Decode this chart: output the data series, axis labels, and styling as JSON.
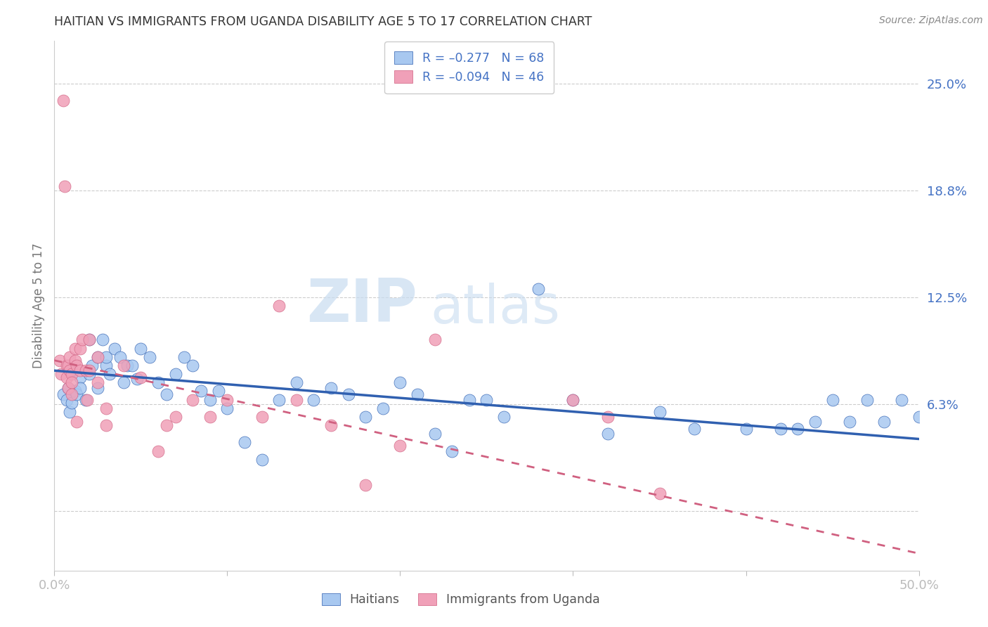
{
  "title": "HAITIAN VS IMMIGRANTS FROM UGANDA DISABILITY AGE 5 TO 17 CORRELATION CHART",
  "source": "Source: ZipAtlas.com",
  "ylabel": "Disability Age 5 to 17",
  "xlim": [
    0.0,
    0.5
  ],
  "ylim": [
    -0.035,
    0.275
  ],
  "yticks": [
    0.0,
    0.0625,
    0.125,
    0.1875,
    0.25
  ],
  "ytick_labels": [
    "",
    "6.3%",
    "12.5%",
    "18.8%",
    "25.0%"
  ],
  "color_blue": "#A8C8F0",
  "color_pink": "#F0A0B8",
  "color_line_blue": "#3060B0",
  "color_line_pink": "#D06080",
  "color_axis_label": "#4472C4",
  "legend_r1": "R = –0.277",
  "legend_n1": "N = 68",
  "legend_r2": "R = –0.094",
  "legend_n2": "N = 46",
  "watermark_zip": "ZIP",
  "watermark_atlas": "atlas",
  "blue_scatter_x": [
    0.005,
    0.007,
    0.008,
    0.009,
    0.01,
    0.01,
    0.012,
    0.013,
    0.015,
    0.015,
    0.018,
    0.02,
    0.02,
    0.022,
    0.025,
    0.025,
    0.028,
    0.03,
    0.03,
    0.032,
    0.035,
    0.038,
    0.04,
    0.042,
    0.045,
    0.048,
    0.05,
    0.055,
    0.06,
    0.065,
    0.07,
    0.075,
    0.08,
    0.085,
    0.09,
    0.095,
    0.1,
    0.11,
    0.12,
    0.13,
    0.14,
    0.15,
    0.16,
    0.17,
    0.18,
    0.19,
    0.2,
    0.21,
    0.22,
    0.23,
    0.24,
    0.25,
    0.26,
    0.28,
    0.3,
    0.32,
    0.35,
    0.37,
    0.4,
    0.42,
    0.43,
    0.44,
    0.45,
    0.46,
    0.47,
    0.48,
    0.49,
    0.5
  ],
  "blue_scatter_y": [
    0.068,
    0.065,
    0.072,
    0.058,
    0.082,
    0.063,
    0.07,
    0.068,
    0.078,
    0.072,
    0.065,
    0.08,
    0.1,
    0.085,
    0.072,
    0.09,
    0.1,
    0.085,
    0.09,
    0.08,
    0.095,
    0.09,
    0.075,
    0.085,
    0.085,
    0.077,
    0.095,
    0.09,
    0.075,
    0.068,
    0.08,
    0.09,
    0.085,
    0.07,
    0.065,
    0.07,
    0.06,
    0.04,
    0.03,
    0.065,
    0.075,
    0.065,
    0.072,
    0.068,
    0.055,
    0.06,
    0.075,
    0.068,
    0.045,
    0.035,
    0.065,
    0.065,
    0.055,
    0.13,
    0.065,
    0.045,
    0.058,
    0.048,
    0.048,
    0.048,
    0.048,
    0.052,
    0.065,
    0.052,
    0.065,
    0.052,
    0.065,
    0.055
  ],
  "pink_scatter_x": [
    0.003,
    0.004,
    0.005,
    0.006,
    0.007,
    0.007,
    0.008,
    0.008,
    0.009,
    0.009,
    0.01,
    0.01,
    0.01,
    0.012,
    0.012,
    0.013,
    0.013,
    0.015,
    0.015,
    0.016,
    0.018,
    0.019,
    0.02,
    0.02,
    0.025,
    0.025,
    0.03,
    0.03,
    0.04,
    0.05,
    0.06,
    0.065,
    0.07,
    0.08,
    0.09,
    0.1,
    0.12,
    0.13,
    0.14,
    0.16,
    0.18,
    0.2,
    0.22,
    0.3,
    0.32,
    0.35
  ],
  "pink_scatter_y": [
    0.088,
    0.08,
    0.24,
    0.19,
    0.085,
    0.078,
    0.085,
    0.072,
    0.09,
    0.082,
    0.08,
    0.075,
    0.068,
    0.095,
    0.088,
    0.085,
    0.052,
    0.095,
    0.082,
    0.1,
    0.082,
    0.065,
    0.1,
    0.082,
    0.09,
    0.075,
    0.06,
    0.05,
    0.085,
    0.078,
    0.035,
    0.05,
    0.055,
    0.065,
    0.055,
    0.065,
    0.055,
    0.12,
    0.065,
    0.05,
    0.015,
    0.038,
    0.1,
    0.065,
    0.055,
    0.01
  ],
  "blue_trend_x0": 0.0,
  "blue_trend_x1": 0.5,
  "blue_trend_y0": 0.082,
  "blue_trend_y1": 0.042,
  "pink_trend_x0": 0.0,
  "pink_trend_x1": 0.5,
  "pink_trend_y0": 0.088,
  "pink_trend_y1": -0.025
}
